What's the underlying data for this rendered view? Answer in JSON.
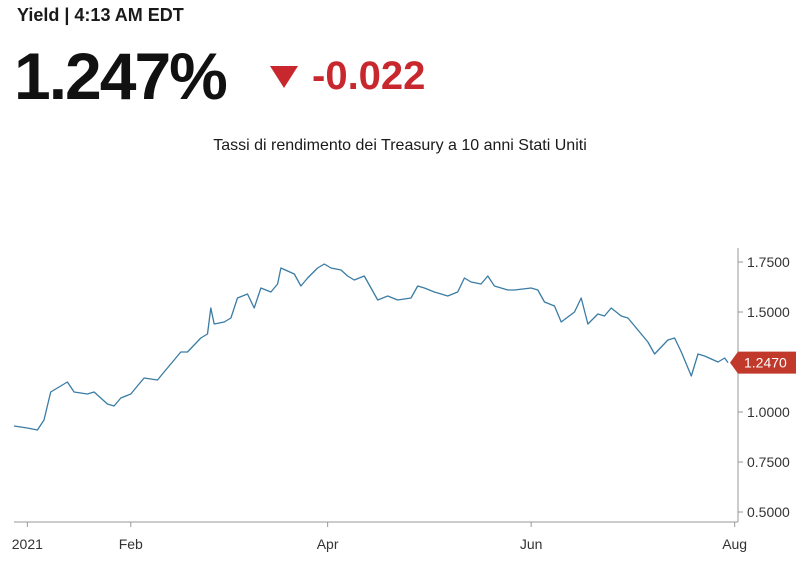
{
  "header": {
    "label": "Yield",
    "time": "4:13 AM EDT"
  },
  "quote": {
    "price": "1.247%",
    "change": "-0.022",
    "direction": "down",
    "change_color": "#c8282d"
  },
  "chart_data": {
    "type": "line",
    "title": "Tassi di rendimento dei Treasury a 10 anni Stati Uniti",
    "xlabel": "",
    "ylabel": "",
    "x_ticks": [
      "2021",
      "Feb",
      "Apr",
      "Jun",
      "Aug"
    ],
    "x_tick_dates": [
      "2021-01-01",
      "2021-02-01",
      "2021-04-01",
      "2021-06-01",
      "2021-08-01"
    ],
    "y_ticks": [
      "1.7500",
      "1.5000",
      "1.2500",
      "1.0000",
      "0.7500",
      "0.5000"
    ],
    "ylim": [
      0.45,
      1.82
    ],
    "xlim": [
      "2020-12-28",
      "2021-08-02"
    ],
    "line_color": "#3a7ca5",
    "last_value_label": "1.2470",
    "last_value": 1.247,
    "last_badge_color": "#c0392b",
    "series": [
      {
        "x": [
          "2020-12-28",
          "2021-01-01",
          "2021-01-04",
          "2021-01-06",
          "2021-01-08",
          "2021-01-11",
          "2021-01-13",
          "2021-01-15",
          "2021-01-19",
          "2021-01-21",
          "2021-01-25",
          "2021-01-27",
          "2021-01-29",
          "2021-02-01",
          "2021-02-03",
          "2021-02-05",
          "2021-02-09",
          "2021-02-11",
          "2021-02-16",
          "2021-02-18",
          "2021-02-22",
          "2021-02-24",
          "2021-02-25",
          "2021-02-26",
          "2021-03-01",
          "2021-03-03",
          "2021-03-05",
          "2021-03-08",
          "2021-03-10",
          "2021-03-12",
          "2021-03-15",
          "2021-03-17",
          "2021-03-18",
          "2021-03-22",
          "2021-03-24",
          "2021-03-26",
          "2021-03-29",
          "2021-03-31",
          "2021-04-02",
          "2021-04-05",
          "2021-04-07",
          "2021-04-09",
          "2021-04-12",
          "2021-04-14",
          "2021-04-16",
          "2021-04-19",
          "2021-04-22",
          "2021-04-26",
          "2021-04-28",
          "2021-04-30",
          "2021-05-03",
          "2021-05-05",
          "2021-05-07",
          "2021-05-10",
          "2021-05-12",
          "2021-05-14",
          "2021-05-17",
          "2021-05-19",
          "2021-05-21",
          "2021-05-25",
          "2021-05-27",
          "2021-06-01",
          "2021-06-03",
          "2021-06-05",
          "2021-06-08",
          "2021-06-10",
          "2021-06-14",
          "2021-06-16",
          "2021-06-18",
          "2021-06-21",
          "2021-06-23",
          "2021-06-25",
          "2021-06-28",
          "2021-06-30",
          "2021-07-02",
          "2021-07-06",
          "2021-07-08",
          "2021-07-12",
          "2021-07-14",
          "2021-07-16",
          "2021-07-19",
          "2021-07-21",
          "2021-07-23",
          "2021-07-27",
          "2021-07-29",
          "2021-07-30"
        ],
        "values": [
          0.93,
          0.92,
          0.91,
          0.96,
          1.1,
          1.13,
          1.15,
          1.1,
          1.09,
          1.1,
          1.04,
          1.03,
          1.07,
          1.09,
          1.13,
          1.17,
          1.16,
          1.2,
          1.3,
          1.3,
          1.37,
          1.39,
          1.52,
          1.44,
          1.45,
          1.47,
          1.57,
          1.59,
          1.52,
          1.62,
          1.6,
          1.64,
          1.72,
          1.69,
          1.63,
          1.67,
          1.72,
          1.74,
          1.72,
          1.71,
          1.68,
          1.66,
          1.68,
          1.62,
          1.56,
          1.58,
          1.56,
          1.57,
          1.63,
          1.62,
          1.6,
          1.59,
          1.58,
          1.6,
          1.67,
          1.65,
          1.64,
          1.68,
          1.63,
          1.61,
          1.61,
          1.62,
          1.61,
          1.55,
          1.53,
          1.45,
          1.5,
          1.57,
          1.44,
          1.49,
          1.48,
          1.52,
          1.48,
          1.47,
          1.43,
          1.35,
          1.29,
          1.36,
          1.37,
          1.3,
          1.18,
          1.29,
          1.28,
          1.25,
          1.27,
          1.247
        ]
      }
    ]
  }
}
